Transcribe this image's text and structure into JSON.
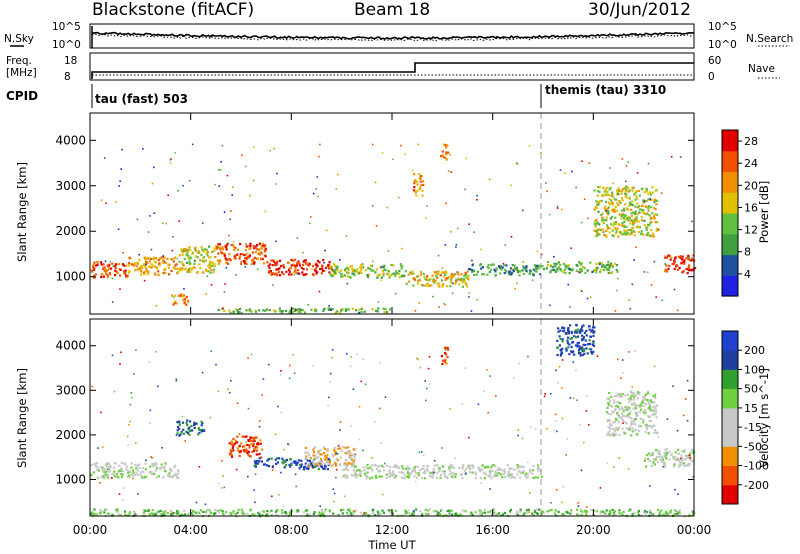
{
  "header": {
    "site": "Blackstone (fitACF)",
    "beam": "Beam 18",
    "date": "30/Jun/2012"
  },
  "params": {
    "left_top_label": "N.Sky",
    "left_top_ticks": [
      "10^5",
      "10^0"
    ],
    "right_top_ticks": [
      "10^5",
      "10^0"
    ],
    "right_top_label": "N.Search",
    "freq_label": "Freq.",
    "freq_unit": "[MHz]",
    "freq_ticks": [
      "18",
      "8"
    ],
    "nave_ticks": [
      "60",
      "0"
    ],
    "nave_label": "Nave",
    "cpid_label": "CPID",
    "cpid_1": "tau (fast) 503",
    "cpid_2": "themis (tau) 3310"
  },
  "colors": {
    "power": [
      "#2020e0",
      "#2050a0",
      "#40a040",
      "#60c040",
      "#e0c000",
      "#f09000",
      "#f05000",
      "#e00000"
    ],
    "velocity": [
      "#e00000",
      "#f05000",
      "#f09000",
      "#c8c8c8",
      "#c8c8c8",
      "#70d040",
      "#30a030",
      "#2040a0",
      "#2040d0"
    ]
  },
  "chart_data": [
    {
      "type": "heatmap",
      "title": "",
      "xlabel": "Time UT",
      "ylabel": "Slant Range [km]",
      "x_ticks": [
        "00:00",
        "04:00",
        "08:00",
        "12:00",
        "16:00",
        "20:00",
        "00:00"
      ],
      "y_ticks": [
        "1000",
        "2000",
        "3000",
        "4000"
      ],
      "ylim": [
        180,
        4600
      ],
      "xlim_hours": [
        0,
        24
      ],
      "colorbar_label": "Power [dB]",
      "colorbar_ticks": [
        "4",
        "8",
        "12",
        "16",
        "20",
        "24",
        "28"
      ],
      "clim": [
        0,
        30
      ],
      "regions": [
        {
          "t": [
            0.0,
            1.5
          ],
          "r": [
            1000,
            1350
          ],
          "v": 25
        },
        {
          "t": [
            1.5,
            3.5
          ],
          "r": [
            1050,
            1450
          ],
          "v": 20
        },
        {
          "t": [
            3.5,
            5.0
          ],
          "r": [
            1100,
            1700
          ],
          "v": 16
        },
        {
          "t": [
            5.0,
            7.0
          ],
          "r": [
            1300,
            1750
          ],
          "v": 24
        },
        {
          "t": [
            7.0,
            9.5
          ],
          "r": [
            1050,
            1400
          ],
          "v": 27
        },
        {
          "t": [
            9.5,
            12.5
          ],
          "r": [
            1000,
            1300
          ],
          "v": 14
        },
        {
          "t": [
            12.5,
            15.0
          ],
          "r": [
            800,
            1150
          ],
          "v": 18
        },
        {
          "t": [
            15.0,
            18.0
          ],
          "r": [
            1050,
            1300
          ],
          "v": 10
        },
        {
          "t": [
            18.0,
            21.0
          ],
          "r": [
            1100,
            1350
          ],
          "v": 12
        },
        {
          "t": [
            22.8,
            24.0
          ],
          "r": [
            1100,
            1500
          ],
          "v": 27
        },
        {
          "t": [
            3.2,
            3.9
          ],
          "r": [
            400,
            650
          ],
          "v": 22
        },
        {
          "t": [
            12.8,
            13.2
          ],
          "r": [
            2800,
            3300
          ],
          "v": 22
        },
        {
          "t": [
            13.9,
            14.2
          ],
          "r": [
            3600,
            3950
          ],
          "v": 22
        },
        {
          "t": [
            20.0,
            22.5
          ],
          "r": [
            1900,
            3000
          ],
          "v": 16
        },
        {
          "t": [
            5.0,
            12.0
          ],
          "r": [
            230,
            330
          ],
          "v": 12
        }
      ]
    },
    {
      "type": "heatmap",
      "title": "",
      "xlabel": "Time UT",
      "ylabel": "Slant Range [km]",
      "x_ticks": [
        "00:00",
        "04:00",
        "08:00",
        "12:00",
        "16:00",
        "20:00",
        "00:00"
      ],
      "y_ticks": [
        "1000",
        "2000",
        "3000",
        "4000"
      ],
      "ylim": [
        180,
        4600
      ],
      "xlim_hours": [
        0,
        24
      ],
      "colorbar_label": "Velocity [m s^-1]",
      "colorbar_ticks": [
        "200",
        "100",
        "50",
        "15",
        "-15",
        "-50",
        "-100",
        "-200"
      ],
      "clim": [
        -250,
        250
      ],
      "regions": [
        {
          "t": [
            0.0,
            3.5
          ],
          "r": [
            1050,
            1400
          ],
          "v": 0
        },
        {
          "t": [
            3.4,
            4.5
          ],
          "r": [
            2000,
            2350
          ],
          "v": -150
        },
        {
          "t": [
            5.5,
            6.8
          ],
          "r": [
            1500,
            2000
          ],
          "v": 180
        },
        {
          "t": [
            6.5,
            9.5
          ],
          "r": [
            1250,
            1500
          ],
          "v": -180
        },
        {
          "t": [
            8.5,
            10.5
          ],
          "r": [
            1300,
            1750
          ],
          "v": 70
        },
        {
          "t": [
            10.0,
            18.0
          ],
          "r": [
            1050,
            1350
          ],
          "v": 0
        },
        {
          "t": [
            13.9,
            14.2
          ],
          "r": [
            3600,
            4000
          ],
          "v": 180
        },
        {
          "t": [
            18.5,
            20.0
          ],
          "r": [
            3800,
            4500
          ],
          "v": -180
        },
        {
          "t": [
            20.5,
            22.5
          ],
          "r": [
            2000,
            3000
          ],
          "v": 0
        },
        {
          "t": [
            22.0,
            24.0
          ],
          "r": [
            1300,
            1700
          ],
          "v": 0
        },
        {
          "t": [
            0.0,
            24.0
          ],
          "r": [
            200,
            350
          ],
          "v": -60
        }
      ]
    }
  ]
}
